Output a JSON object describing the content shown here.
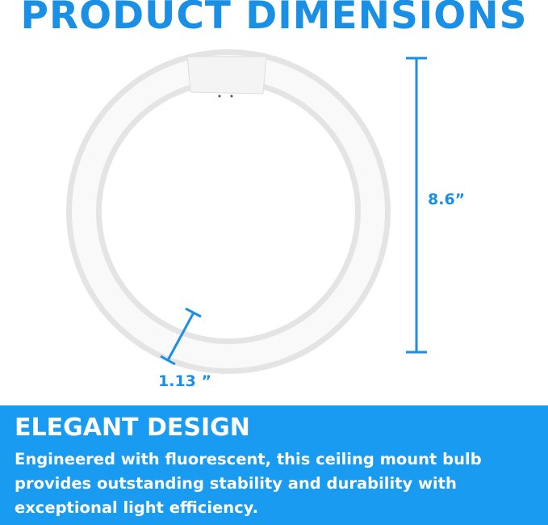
{
  "header": {
    "title": "PRODUCT DIMENSIONS"
  },
  "dimensions": {
    "height": "8.6”",
    "tube_diameter": "1.13 ”"
  },
  "colors": {
    "accent": "#1a8fe6",
    "banner": "#1a9bf2"
  },
  "banner": {
    "heading": "ELEGANT DESIGN",
    "body": "Engineered with fluorescent, this ceiling mount bulb provides outstanding stability and durability with exceptional light efficiency."
  }
}
